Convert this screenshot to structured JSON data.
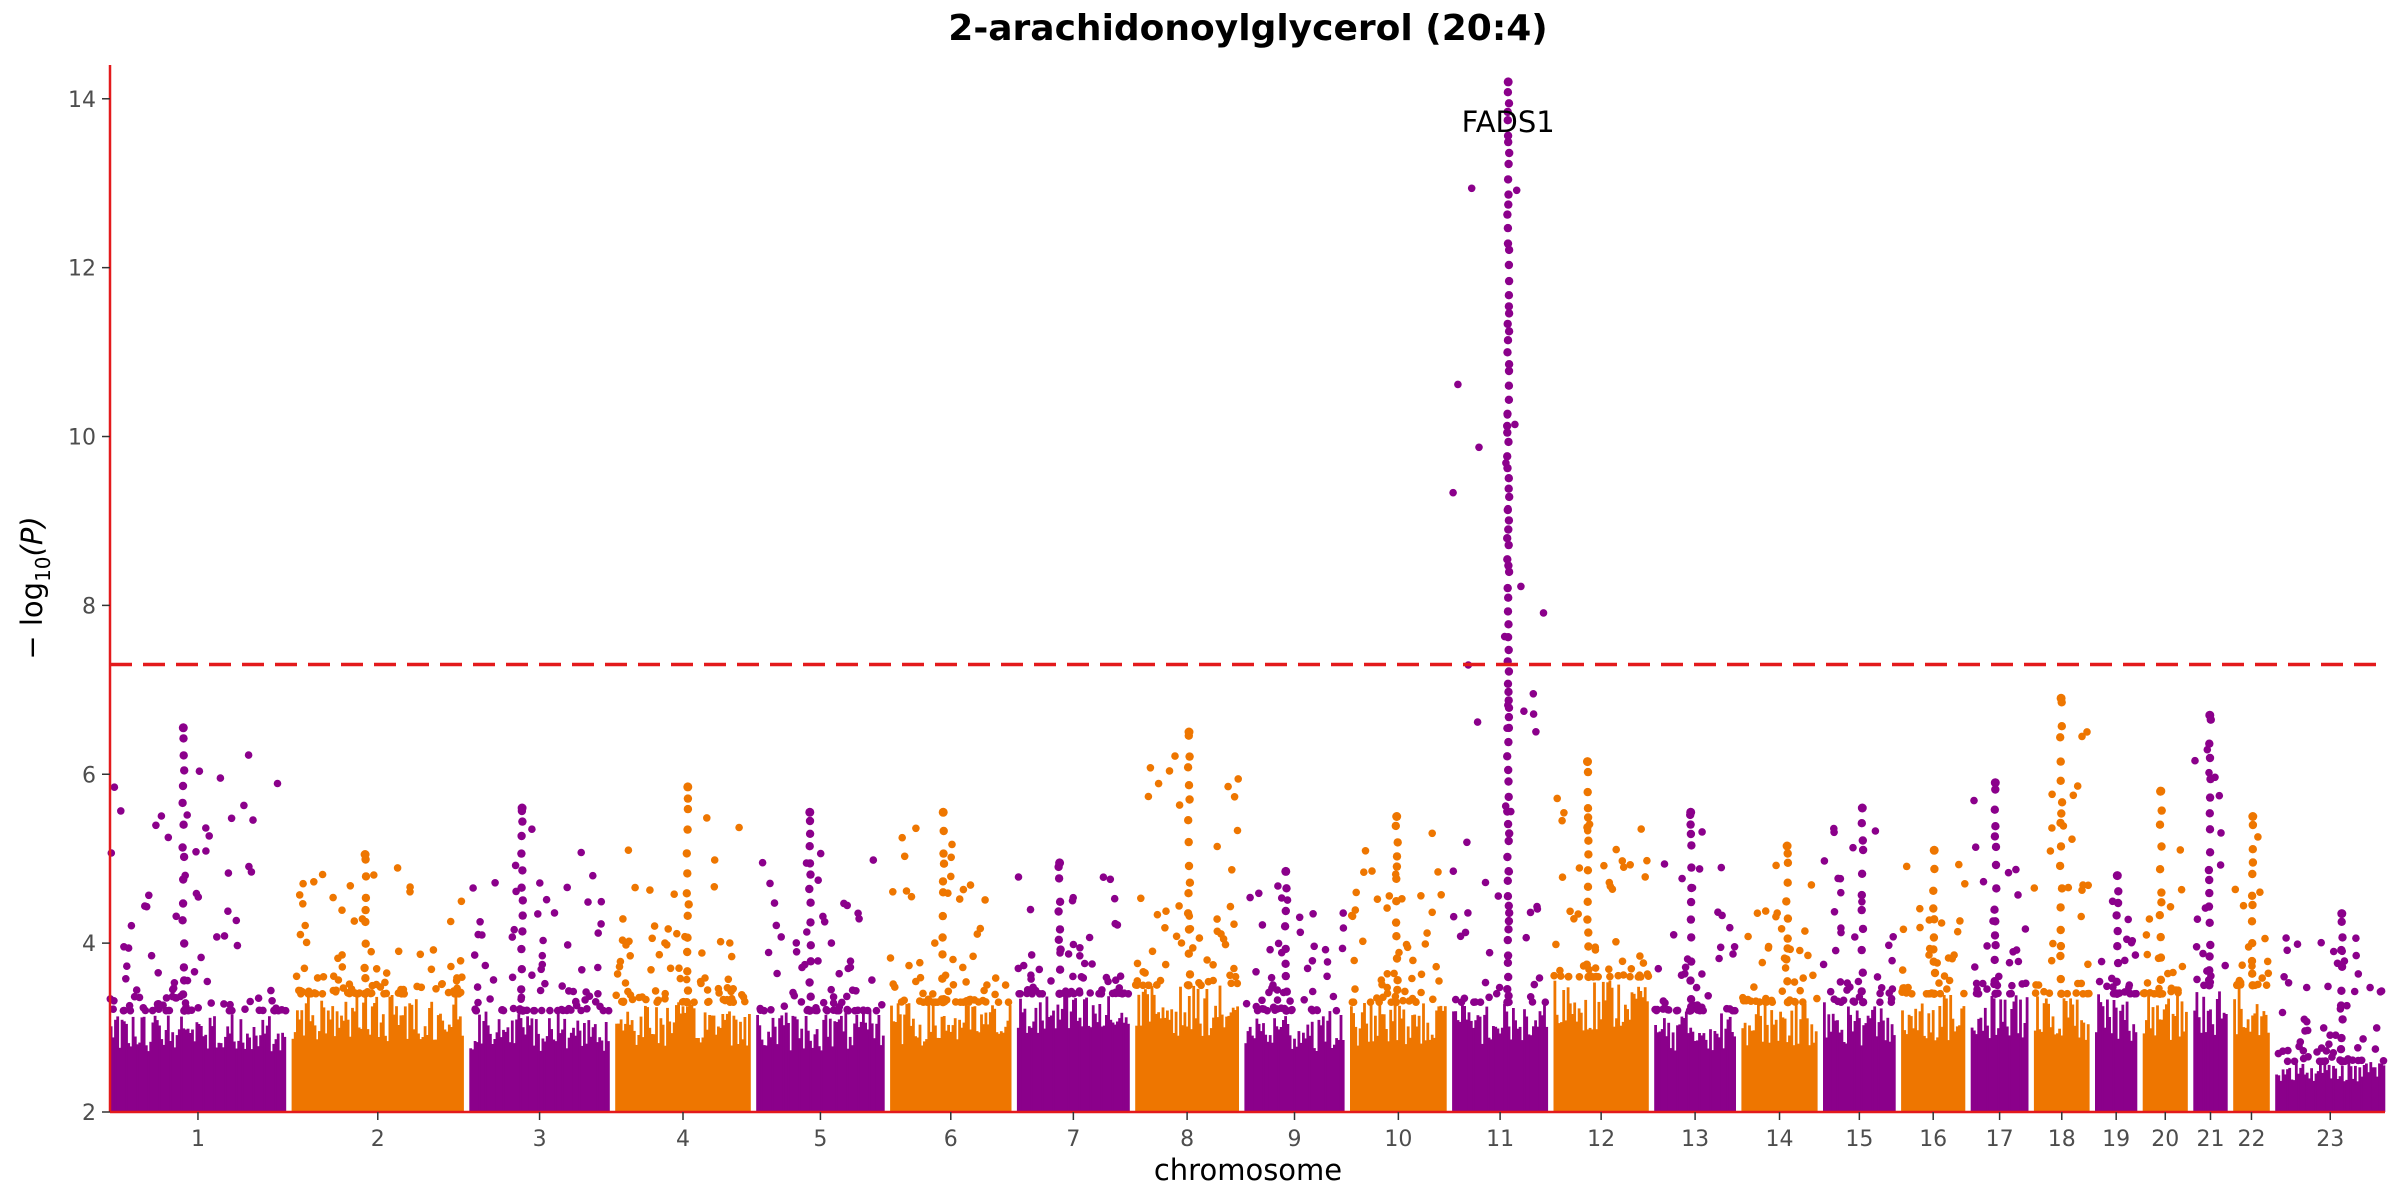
{
  "chart_data": {
    "type": "scatter",
    "title": "2-arachidonoylglycerol (20:4)",
    "xlabel": "chromosome",
    "ylabel_prefix": "− log",
    "ylabel_sub": "10",
    "ylabel_suffix": "(P)",
    "ylim": [
      2,
      14.4
    ],
    "yticks": [
      2,
      4,
      6,
      8,
      10,
      12,
      14
    ],
    "significance_threshold": 7.3,
    "colors": {
      "odd": "#8b008b",
      "even": "#ee7600",
      "threshold": "#e31a1c",
      "axis": "#e31a1c"
    },
    "chromosomes": [
      {
        "label": "1",
        "base": 3.2,
        "peak": 6.55
      },
      {
        "label": "2",
        "base": 3.4,
        "peak": 5.05
      },
      {
        "label": "3",
        "base": 3.2,
        "peak": 5.6
      },
      {
        "label": "4",
        "base": 3.3,
        "peak": 5.85
      },
      {
        "label": "5",
        "base": 3.2,
        "peak": 5.55
      },
      {
        "label": "6",
        "base": 3.3,
        "peak": 5.55
      },
      {
        "label": "7",
        "base": 3.4,
        "peak": 4.95
      },
      {
        "label": "8",
        "base": 3.5,
        "peak": 6.5
      },
      {
        "label": "9",
        "base": 3.2,
        "peak": 4.85
      },
      {
        "label": "10",
        "base": 3.3,
        "peak": 5.5
      },
      {
        "label": "11",
        "base": 3.3,
        "peak": 14.2
      },
      {
        "label": "12",
        "base": 3.6,
        "peak": 6.15
      },
      {
        "label": "13",
        "base": 3.2,
        "peak": 5.55
      },
      {
        "label": "14",
        "base": 3.3,
        "peak": 5.15
      },
      {
        "label": "15",
        "base": 3.3,
        "peak": 5.6
      },
      {
        "label": "16",
        "base": 3.4,
        "peak": 5.1
      },
      {
        "label": "17",
        "base": 3.4,
        "peak": 5.9
      },
      {
        "label": "18",
        "base": 3.4,
        "peak": 6.9
      },
      {
        "label": "19",
        "base": 3.4,
        "peak": 4.8
      },
      {
        "label": "20",
        "base": 3.4,
        "peak": 5.8
      },
      {
        "label": "21",
        "base": 3.5,
        "peak": 6.7
      },
      {
        "label": "22",
        "base": 3.5,
        "peak": 5.5
      },
      {
        "label": "23",
        "base": 2.6,
        "peak": 4.35
      }
    ],
    "annotations": [
      {
        "text": "FADS1",
        "chromosome": "11",
        "y": 14.2
      }
    ]
  }
}
